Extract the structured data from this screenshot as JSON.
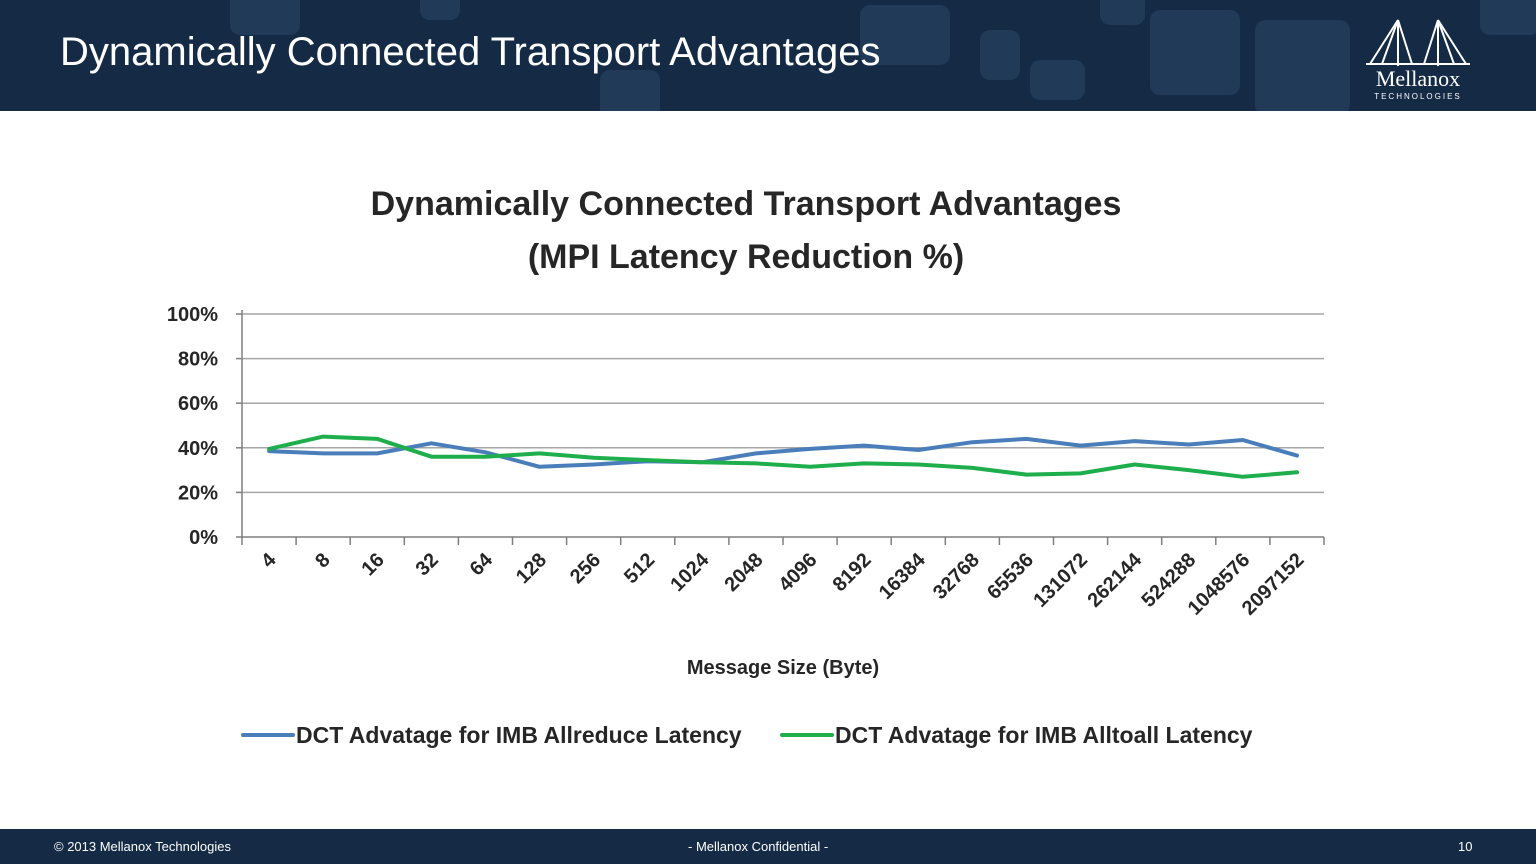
{
  "slide": {
    "title": "Dynamically Connected Transport Advantages"
  },
  "logo": {
    "wordmark": "Mellanox",
    "subtitle": "TECHNOLOGIES"
  },
  "footer": {
    "copyright": "© 2013 Mellanox Technologies",
    "confidential": "- Mellanox Confidential -",
    "page_number": "10"
  },
  "colors": {
    "header_bg": "#142a45",
    "series_allreduce": "#4a7ebb",
    "series_alltoall": "#1fae4c",
    "gridline": "#a6a6a6"
  },
  "chart_data": {
    "type": "line",
    "title_line1": "Dynamically Connected Transport Advantages",
    "title_line2": "(MPI Latency Reduction %)",
    "xlabel": "Message Size (Byte)",
    "ylabel": "",
    "ylim": [
      0,
      100
    ],
    "y_ticks": [
      "0%",
      "20%",
      "40%",
      "60%",
      "80%",
      "100%"
    ],
    "y_tick_values": [
      0,
      20,
      40,
      60,
      80,
      100
    ],
    "categories": [
      "4",
      "8",
      "16",
      "32",
      "64",
      "128",
      "256",
      "512",
      "1024",
      "2048",
      "4096",
      "8192",
      "16384",
      "32768",
      "65536",
      "131072",
      "262144",
      "524288",
      "1048576",
      "2097152"
    ],
    "series": [
      {
        "name": "DCT Advatage for IMB Allreduce Latency",
        "color": "#4a7ebb",
        "values": [
          38.5,
          37.5,
          37.5,
          42,
          38,
          31.5,
          32.5,
          34,
          33.5,
          37.5,
          39.5,
          41,
          39,
          42.5,
          44,
          41,
          43,
          41.5,
          43.5,
          36.5
        ]
      },
      {
        "name": "DCT Advatage for IMB Alltoall Latency",
        "color": "#1fae4c",
        "values": [
          39.5,
          45,
          44,
          36,
          36,
          37.5,
          35.5,
          34.5,
          33.5,
          33,
          31.5,
          33,
          32.5,
          31,
          28,
          28.5,
          32.5,
          30,
          27,
          29
        ]
      }
    ],
    "grid": true,
    "legend_position": "bottom"
  }
}
